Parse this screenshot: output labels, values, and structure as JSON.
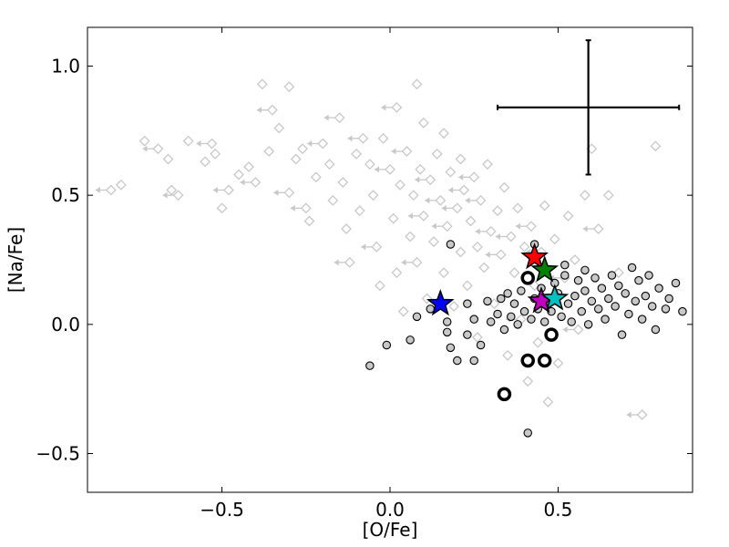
{
  "chart_data": {
    "type": "scatter",
    "title": "",
    "xlabel": "[O/Fe]",
    "ylabel": "[Na/Fe]",
    "xlim": [
      -0.9,
      0.9
    ],
    "ylim": [
      -0.65,
      1.15
    ],
    "xticks": [
      -0.5,
      0.0,
      0.5
    ],
    "xtick_labels": [
      "−0.5",
      "0.0",
      "0.5"
    ],
    "yticks": [
      -0.5,
      0.0,
      0.5,
      1.0
    ],
    "ytick_labels": [
      "−0.5",
      "0.0",
      "0.5",
      "1.0"
    ],
    "grid": false,
    "legend": null,
    "colors": {
      "grey_diamonds": "#c8c8c8",
      "black_circle_fill": "#c8c8c8",
      "black_circle_edge": "#000000",
      "errorbar": "#000000"
    },
    "error_bar": {
      "x": 0.59,
      "y": 0.84,
      "xerr": 0.27,
      "yerr": 0.26
    },
    "series": [
      {
        "marker": "diamond",
        "style": "grey hollow diamonds (with upper-limit arrows)",
        "points": [
          [
            -0.83,
            0.52
          ],
          [
            -0.8,
            0.54
          ],
          [
            -0.73,
            0.71
          ],
          [
            -0.69,
            0.68
          ],
          [
            -0.66,
            0.64
          ],
          [
            -0.65,
            0.52
          ],
          [
            -0.63,
            0.5
          ],
          [
            -0.6,
            0.71
          ],
          [
            -0.55,
            0.63
          ],
          [
            -0.53,
            0.7
          ],
          [
            -0.52,
            0.66
          ],
          [
            -0.5,
            0.45
          ],
          [
            -0.48,
            0.52
          ],
          [
            -0.45,
            0.58
          ],
          [
            -0.42,
            0.61
          ],
          [
            -0.4,
            0.55
          ],
          [
            -0.38,
            0.93
          ],
          [
            -0.36,
            0.67
          ],
          [
            -0.35,
            0.83
          ],
          [
            -0.33,
            0.76
          ],
          [
            -0.3,
            0.92
          ],
          [
            -0.3,
            0.51
          ],
          [
            -0.28,
            0.64
          ],
          [
            -0.26,
            0.68
          ],
          [
            -0.25,
            0.45
          ],
          [
            -0.24,
            0.4
          ],
          [
            -0.22,
            0.57
          ],
          [
            -0.2,
            0.7
          ],
          [
            -0.18,
            0.62
          ],
          [
            -0.17,
            0.48
          ],
          [
            -0.15,
            0.8
          ],
          [
            -0.14,
            0.55
          ],
          [
            -0.13,
            0.37
          ],
          [
            -0.12,
            0.24
          ],
          [
            -0.1,
            0.66
          ],
          [
            -0.09,
            0.44
          ],
          [
            -0.08,
            0.72
          ],
          [
            -0.06,
            0.62
          ],
          [
            -0.05,
            0.5
          ],
          [
            -0.04,
            0.3
          ],
          [
            -0.03,
            0.15
          ],
          [
            -0.02,
            0.72
          ],
          [
            0.0,
            0.6
          ],
          [
            0.01,
            0.41
          ],
          [
            0.02,
            0.2
          ],
          [
            0.02,
            0.84
          ],
          [
            0.03,
            0.54
          ],
          [
            0.04,
            0.05
          ],
          [
            0.05,
            0.67
          ],
          [
            0.06,
            0.34
          ],
          [
            0.07,
            0.5
          ],
          [
            0.08,
            0.24
          ],
          [
            0.08,
            0.93
          ],
          [
            0.09,
            0.6
          ],
          [
            0.1,
            0.42
          ],
          [
            0.1,
            0.78
          ],
          [
            0.11,
            0.1
          ],
          [
            0.12,
            0.56
          ],
          [
            0.13,
            0.32
          ],
          [
            0.14,
            0.66
          ],
          [
            0.15,
            0.48
          ],
          [
            0.16,
            0.2
          ],
          [
            0.16,
            0.74
          ],
          [
            0.17,
            0.38
          ],
          [
            0.18,
            0.59
          ],
          [
            0.19,
            0.07
          ],
          [
            0.2,
            0.45
          ],
          [
            0.21,
            0.28
          ],
          [
            0.21,
            0.64
          ],
          [
            0.22,
            0.52
          ],
          [
            0.23,
            0.15
          ],
          [
            0.24,
            0.4
          ],
          [
            0.25,
            0.57
          ],
          [
            0.26,
            0.3
          ],
          [
            0.26,
            -0.05
          ],
          [
            0.27,
            0.48
          ],
          [
            0.28,
            0.22
          ],
          [
            0.29,
            0.62
          ],
          [
            0.3,
            0.36
          ],
          [
            0.31,
            0.08
          ],
          [
            0.32,
            0.44
          ],
          [
            0.33,
            0.27
          ],
          [
            0.34,
            0.53
          ],
          [
            0.35,
            -0.12
          ],
          [
            0.36,
            0.34
          ],
          [
            0.37,
            0.2
          ],
          [
            0.38,
            0.45
          ],
          [
            0.39,
            0.02
          ],
          [
            0.4,
            0.3
          ],
          [
            0.41,
            -0.22
          ],
          [
            0.42,
            0.38
          ],
          [
            0.43,
            0.15
          ],
          [
            0.44,
            -0.07
          ],
          [
            0.45,
            0.28
          ],
          [
            0.46,
            0.46
          ],
          [
            0.47,
            -0.3
          ],
          [
            0.48,
            0.1
          ],
          [
            0.49,
            0.33
          ],
          [
            0.5,
            -0.15
          ],
          [
            0.52,
            0.18
          ],
          [
            0.53,
            0.42
          ],
          [
            0.55,
            0.25
          ],
          [
            0.56,
            -0.02
          ],
          [
            0.58,
            0.5
          ],
          [
            0.6,
            0.68
          ],
          [
            0.62,
            0.37
          ],
          [
            0.65,
            0.5
          ],
          [
            0.68,
            0.2
          ],
          [
            0.75,
            -0.35
          ],
          [
            0.79,
            0.69
          ]
        ]
      },
      {
        "marker": "circle",
        "style": "small grey-filled circles with black edge",
        "points": [
          [
            -0.06,
            -0.16
          ],
          [
            -0.01,
            -0.08
          ],
          [
            0.06,
            -0.06
          ],
          [
            0.08,
            0.03
          ],
          [
            0.12,
            0.06
          ],
          [
            0.17,
            0.01
          ],
          [
            0.17,
            -0.03
          ],
          [
            0.18,
            -0.09
          ],
          [
            0.2,
            -0.14
          ],
          [
            0.23,
            0.08
          ],
          [
            0.23,
            -0.04
          ],
          [
            0.25,
            0.02
          ],
          [
            0.25,
            -0.14
          ],
          [
            0.27,
            -0.08
          ],
          [
            0.29,
            0.09
          ],
          [
            0.3,
            0.01
          ],
          [
            0.32,
            0.04
          ],
          [
            0.33,
            0.1
          ],
          [
            0.34,
            -0.02
          ],
          [
            0.35,
            0.12
          ],
          [
            0.36,
            0.03
          ],
          [
            0.37,
            0.08
          ],
          [
            0.38,
            0.0
          ],
          [
            0.39,
            0.13
          ],
          [
            0.4,
            0.05
          ],
          [
            0.41,
            0.17
          ],
          [
            0.41,
            -0.42
          ],
          [
            0.42,
            0.02
          ],
          [
            0.43,
            0.1
          ],
          [
            0.44,
            0.06
          ],
          [
            0.45,
            0.14
          ],
          [
            0.46,
            0.01
          ],
          [
            0.47,
            0.09
          ],
          [
            0.48,
            0.05
          ],
          [
            0.49,
            0.16
          ],
          [
            0.5,
            0.12
          ],
          [
            0.51,
            0.03
          ],
          [
            0.52,
            0.19
          ],
          [
            0.53,
            0.08
          ],
          [
            0.54,
            0.01
          ],
          [
            0.55,
            0.11
          ],
          [
            0.56,
            0.17
          ],
          [
            0.57,
            0.05
          ],
          [
            0.58,
            0.13
          ],
          [
            0.59,
            0.0
          ],
          [
            0.6,
            0.09
          ],
          [
            0.61,
            0.18
          ],
          [
            0.62,
            0.06
          ],
          [
            0.63,
            0.14
          ],
          [
            0.64,
            0.02
          ],
          [
            0.65,
            0.1
          ],
          [
            0.66,
            0.19
          ],
          [
            0.67,
            0.07
          ],
          [
            0.68,
            0.15
          ],
          [
            0.69,
            -0.04
          ],
          [
            0.7,
            0.12
          ],
          [
            0.71,
            0.04
          ],
          [
            0.72,
            0.22
          ],
          [
            0.73,
            0.09
          ],
          [
            0.74,
            0.17
          ],
          [
            0.75,
            0.02
          ],
          [
            0.76,
            0.11
          ],
          [
            0.77,
            0.19
          ],
          [
            0.78,
            0.07
          ],
          [
            0.79,
            -0.02
          ],
          [
            0.8,
            0.14
          ],
          [
            0.82,
            0.06
          ],
          [
            0.83,
            0.1
          ],
          [
            0.85,
            0.16
          ],
          [
            0.87,
            0.05
          ],
          [
            0.52,
            0.23
          ],
          [
            0.58,
            0.21
          ],
          [
            0.43,
            0.31
          ],
          [
            0.18,
            0.31
          ]
        ]
      },
      {
        "marker": "open-circle",
        "style": "large hollow black circles",
        "points": [
          [
            0.41,
            0.18
          ],
          [
            0.48,
            -0.04
          ],
          [
            0.41,
            -0.14
          ],
          [
            0.46,
            -0.14
          ],
          [
            0.34,
            -0.27
          ]
        ]
      },
      {
        "marker": "star",
        "style": "colored stars",
        "points": [
          {
            "x": 0.43,
            "y": 0.26,
            "color": "#ff0000"
          },
          {
            "x": 0.46,
            "y": 0.21,
            "color": "#008000"
          },
          {
            "x": 0.15,
            "y": 0.08,
            "color": "#0000ff"
          },
          {
            "x": 0.45,
            "y": 0.09,
            "color": "#bf00bf"
          },
          {
            "x": 0.49,
            "y": 0.1,
            "color": "#00bfbf"
          }
        ]
      }
    ]
  }
}
